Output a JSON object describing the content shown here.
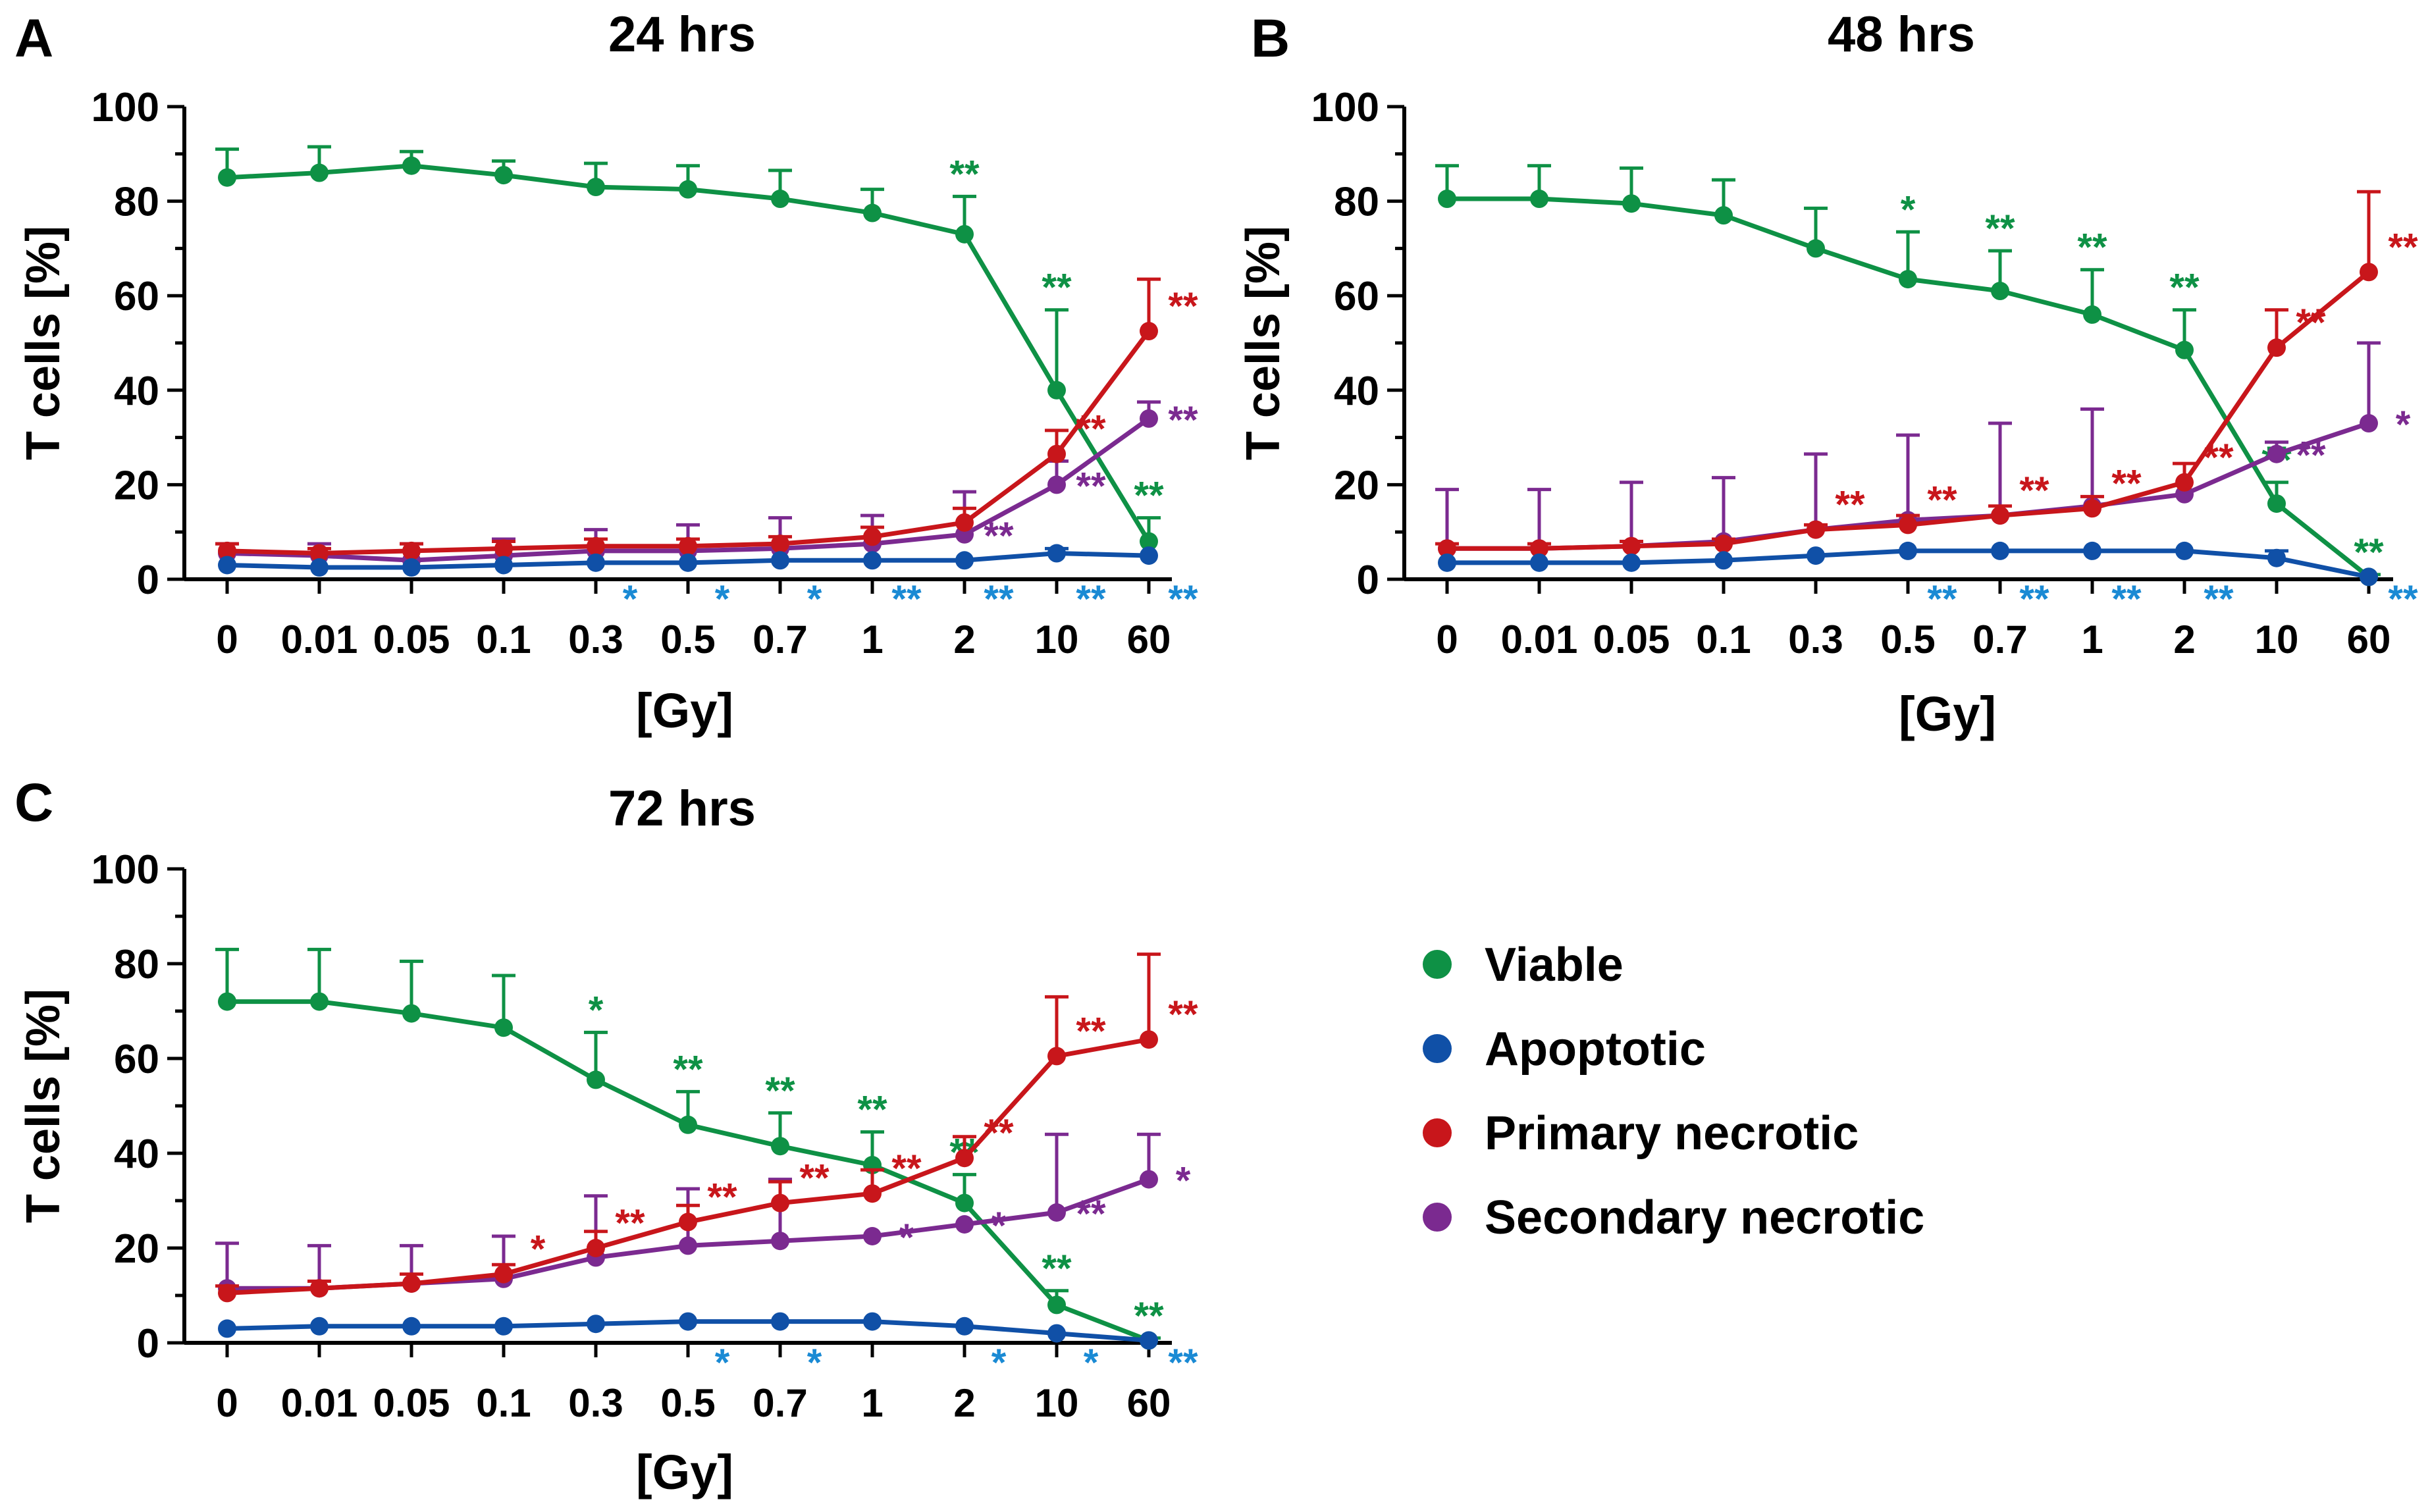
{
  "colors": {
    "viable": "#0e9145",
    "apoptotic": "#1050a7",
    "primary": "#c8161b",
    "secondary": "#7b2a90",
    "apoptotic_star": "#1a8ad4"
  },
  "legend": [
    {
      "key": "viable",
      "label": "Viable"
    },
    {
      "key": "apoptotic",
      "label": "Apoptotic"
    },
    {
      "key": "primary",
      "label": "Primary necrotic"
    },
    {
      "key": "secondary",
      "label": "Secondary necrotic"
    }
  ],
  "chart_data": [
    {
      "type": "line",
      "panel": "A",
      "title": "24 hrs",
      "xlabel": "[Gy]",
      "ylabel": "T cells [%]",
      "ylim": [
        0,
        100
      ],
      "yticks": [
        "0",
        "20",
        "40",
        "60",
        "80",
        "100"
      ],
      "categories": [
        "0",
        "0.01",
        "0.05",
        "0.1",
        "0.3",
        "0.5",
        "0.7",
        "1",
        "2",
        "10",
        "60"
      ],
      "series": [
        {
          "key": "viable",
          "name": "Viable",
          "values": [
            85,
            86,
            87.5,
            85.5,
            83,
            82.5,
            80.5,
            77.5,
            73,
            40,
            8
          ],
          "errors": [
            6,
            5.5,
            3,
            3,
            5,
            5,
            6,
            5,
            8,
            17,
            5
          ],
          "stars": [
            "",
            "",
            "",
            "",
            "",
            "",
            "",
            "",
            "**",
            "**",
            "**"
          ]
        },
        {
          "key": "apoptotic",
          "name": "Apoptotic",
          "values": [
            3,
            2.5,
            2.5,
            3,
            3.5,
            3.5,
            4,
            4,
            4,
            5.5,
            5
          ],
          "errors": [
            0,
            0,
            0,
            0,
            0,
            0,
            0,
            0,
            0,
            1,
            0
          ],
          "stars": [
            "",
            "",
            "",
            "",
            "*",
            "*",
            "*",
            "**",
            "**",
            "**",
            "**"
          ]
        },
        {
          "key": "primary",
          "name": "Primary necrotic",
          "values": [
            6,
            5.5,
            6,
            6.5,
            7,
            7,
            7.5,
            9,
            12,
            26.5,
            52.5
          ],
          "errors": [
            1.5,
            1,
            1.5,
            1.5,
            1.5,
            1.5,
            1.5,
            2,
            3,
            5,
            11
          ],
          "stars": [
            "",
            "",
            "",
            "",
            "",
            "",
            "",
            "",
            "",
            "**",
            "**"
          ]
        },
        {
          "key": "secondary",
          "name": "Secondary necrotic",
          "values": [
            5.5,
            5,
            4,
            5,
            6,
            6,
            6.5,
            7.5,
            9.5,
            20,
            34
          ],
          "errors": [
            2,
            2.5,
            3.5,
            3.5,
            4.5,
            5.5,
            6.5,
            6,
            9,
            5,
            3.5
          ],
          "stars": [
            "",
            "",
            "",
            "",
            "",
            "",
            "",
            "",
            "**",
            "**",
            "**"
          ]
        }
      ]
    },
    {
      "type": "line",
      "panel": "B",
      "title": "48 hrs",
      "xlabel": "[Gy]",
      "ylabel": "T cells [%]",
      "ylim": [
        0,
        100
      ],
      "yticks": [
        "0",
        "20",
        "40",
        "60",
        "80",
        "100"
      ],
      "categories": [
        "0",
        "0.01",
        "0.05",
        "0.1",
        "0.3",
        "0.5",
        "0.7",
        "1",
        "2",
        "10",
        "60"
      ],
      "series": [
        {
          "key": "viable",
          "name": "Viable",
          "values": [
            80.5,
            80.5,
            79.5,
            77,
            70,
            63.5,
            61,
            56,
            48.5,
            16,
            0.5
          ],
          "errors": [
            7,
            7,
            7.5,
            7.5,
            8.5,
            10,
            8.5,
            9.5,
            8.5,
            4.5,
            0.5
          ],
          "stars": [
            "",
            "",
            "",
            "",
            "",
            "*",
            "**",
            "**",
            "**",
            "**",
            "**"
          ]
        },
        {
          "key": "apoptotic",
          "name": "Apoptotic",
          "values": [
            3.5,
            3.5,
            3.5,
            4,
            5,
            6,
            6,
            6,
            6,
            4.5,
            0.5
          ],
          "errors": [
            0,
            0,
            0,
            0,
            0,
            0,
            0,
            0,
            0,
            1.5,
            0
          ],
          "stars": [
            "",
            "",
            "",
            "",
            "",
            "**",
            "**",
            "**",
            "**",
            "",
            "**"
          ]
        },
        {
          "key": "primary",
          "name": "Primary necrotic",
          "values": [
            6.5,
            6.5,
            7,
            7.5,
            10.5,
            11.5,
            13.5,
            15,
            20.5,
            49,
            65
          ],
          "errors": [
            1,
            1,
            1,
            1,
            1,
            2,
            2,
            2.5,
            4,
            8,
            17
          ],
          "stars": [
            "",
            "",
            "",
            "",
            "**",
            "**",
            "**",
            "**",
            "**",
            "**",
            "**"
          ]
        },
        {
          "key": "secondary",
          "name": "Secondary necrotic",
          "values": [
            6.5,
            6.5,
            7,
            8,
            10.5,
            12.5,
            13.5,
            15.5,
            18,
            26.5,
            33
          ],
          "errors": [
            12.5,
            12.5,
            13.5,
            13.5,
            16,
            18,
            19.5,
            20.5,
            0,
            2.5,
            17
          ],
          "stars": [
            "",
            "",
            "",
            "",
            "",
            "",
            "",
            "",
            "",
            "**",
            "*"
          ]
        }
      ]
    },
    {
      "type": "line",
      "panel": "C",
      "title": "72 hrs",
      "xlabel": "[Gy]",
      "ylabel": "T cells [%]",
      "ylim": [
        0,
        100
      ],
      "yticks": [
        "0",
        "20",
        "40",
        "60",
        "80",
        "100"
      ],
      "categories": [
        "0",
        "0.01",
        "0.05",
        "0.1",
        "0.3",
        "0.5",
        "0.7",
        "1",
        "2",
        "10",
        "60"
      ],
      "series": [
        {
          "key": "viable",
          "name": "Viable",
          "values": [
            72,
            72,
            69.5,
            66.5,
            55.5,
            46,
            41.5,
            37.5,
            29.5,
            8,
            0.5
          ],
          "errors": [
            11,
            11,
            11,
            11,
            10,
            7,
            7,
            7,
            6,
            3,
            0.5
          ],
          "stars": [
            "",
            "",
            "",
            "",
            "*",
            "**",
            "**",
            "**",
            "**",
            "**",
            "**"
          ]
        },
        {
          "key": "apoptotic",
          "name": "Apoptotic",
          "values": [
            3,
            3.5,
            3.5,
            3.5,
            4,
            4.5,
            4.5,
            4.5,
            3.5,
            2,
            0.5
          ],
          "errors": [
            0,
            0,
            0,
            0,
            0,
            0,
            0,
            0,
            0,
            0,
            0
          ],
          "stars": [
            "",
            "",
            "",
            "",
            "",
            "*",
            "*",
            "",
            "*",
            "*",
            "**"
          ]
        },
        {
          "key": "primary",
          "name": "Primary necrotic",
          "values": [
            10.5,
            11.5,
            12.5,
            14.5,
            20,
            25.5,
            29.5,
            31.5,
            39,
            60.5,
            64
          ],
          "errors": [
            1.5,
            1.5,
            2,
            2,
            3.5,
            3.5,
            4.5,
            5,
            4.5,
            12.5,
            18
          ],
          "stars": [
            "",
            "",
            "",
            "*",
            "**",
            "**",
            "**",
            "**",
            "**",
            "**",
            "**"
          ]
        },
        {
          "key": "secondary",
          "name": "Secondary necrotic",
          "values": [
            11.5,
            11.5,
            12.5,
            13.5,
            18,
            20.5,
            21.5,
            22.5,
            25,
            27.5,
            34.5
          ],
          "errors": [
            9.5,
            9,
            8,
            9,
            13,
            12,
            13,
            0,
            0,
            16.5,
            9.5
          ],
          "stars": [
            "",
            "",
            "",
            "",
            "",
            "",
            "",
            "*",
            "*",
            "**",
            "*"
          ]
        }
      ]
    }
  ]
}
